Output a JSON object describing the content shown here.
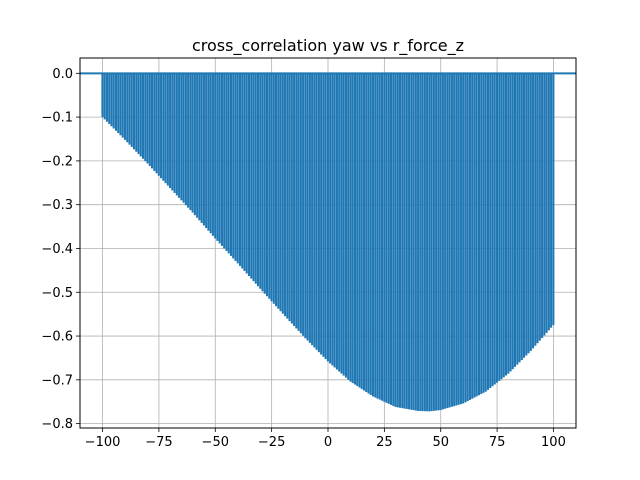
{
  "chart_data": {
    "type": "bar",
    "title": "cross_correlation yaw vs r_force_z",
    "xlabel": "",
    "ylabel": "",
    "xlim": [
      -110,
      110
    ],
    "ylim": [
      -0.81,
      0.035
    ],
    "grid": true,
    "bar_color": "#1f77b4",
    "baseline_color": "#1f77b4",
    "x_ticks": [
      -100,
      -75,
      -50,
      -25,
      0,
      25,
      50,
      75,
      100
    ],
    "x_tick_labels": [
      "−100",
      "−75",
      "−50",
      "−25",
      "0",
      "25",
      "50",
      "75",
      "100"
    ],
    "y_ticks": [
      0.0,
      -0.1,
      -0.2,
      -0.3,
      -0.4,
      -0.5,
      -0.6,
      -0.7,
      -0.8
    ],
    "y_tick_labels": [
      "0.0",
      "−0.1",
      "−0.2",
      "−0.3",
      "−0.4",
      "−0.5",
      "−0.6",
      "−0.7",
      "−0.8"
    ],
    "lag_range": [
      -100,
      100
    ],
    "series": [
      {
        "x": [
          -100,
          -90,
          -80,
          -70,
          -60,
          -50,
          -40,
          -30,
          -20,
          -10,
          0,
          10,
          20,
          30,
          40,
          45,
          50,
          60,
          70,
          80,
          90,
          100
        ],
        "values": [
          -0.1,
          -0.152,
          -0.206,
          -0.262,
          -0.318,
          -0.377,
          -0.434,
          -0.492,
          -0.549,
          -0.605,
          -0.658,
          -0.704,
          -0.738,
          -0.762,
          -0.771,
          -0.772,
          -0.769,
          -0.754,
          -0.727,
          -0.686,
          -0.634,
          -0.575
        ]
      }
    ]
  }
}
